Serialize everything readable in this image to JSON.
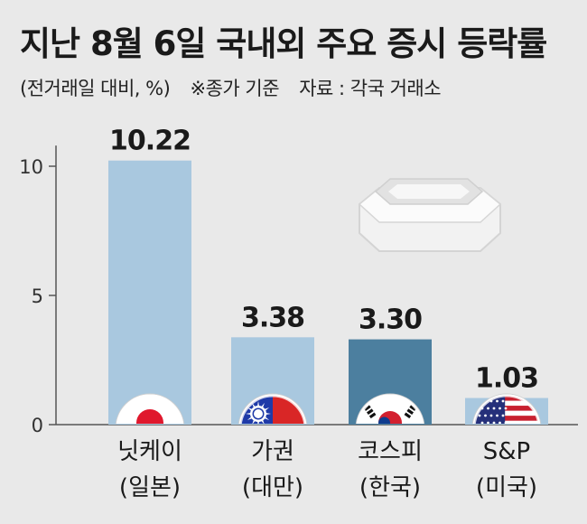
{
  "header": {
    "title": "지난 8월 6일 국내외 주요 증시 등락률",
    "unit_note": "(전거래일 대비, %)",
    "basis_note": "※종가 기준",
    "source": "자료 : 각국 거래소"
  },
  "chart_data": {
    "type": "bar",
    "title": "지난 8월 6일 국내외 주요 증시 등락률",
    "xlabel": "",
    "ylabel": "",
    "ylim": [
      0,
      10.8
    ],
    "yticks": [
      0,
      5,
      10
    ],
    "grid": false,
    "categories": [
      {
        "name": "닛케이",
        "region": "(일본)",
        "flag": "japan-flag"
      },
      {
        "name": "가권",
        "region": "(대만)",
        "flag": "taiwan-flag"
      },
      {
        "name": "코스피",
        "region": "(한국)",
        "flag": "korea-flag"
      },
      {
        "name": "S&P",
        "region": "(미국)",
        "flag": "usa-flag"
      }
    ],
    "values": [
      10.22,
      3.38,
      3.3,
      1.03
    ],
    "value_labels": [
      "10.22",
      "3.38",
      "3.30",
      "1.03"
    ],
    "colors": {
      "bar": "#a9c8df",
      "bar_highlight": "#4c7f9f",
      "axis": "#555555",
      "background": "#e9e9e9"
    },
    "highlight_index": 2
  }
}
